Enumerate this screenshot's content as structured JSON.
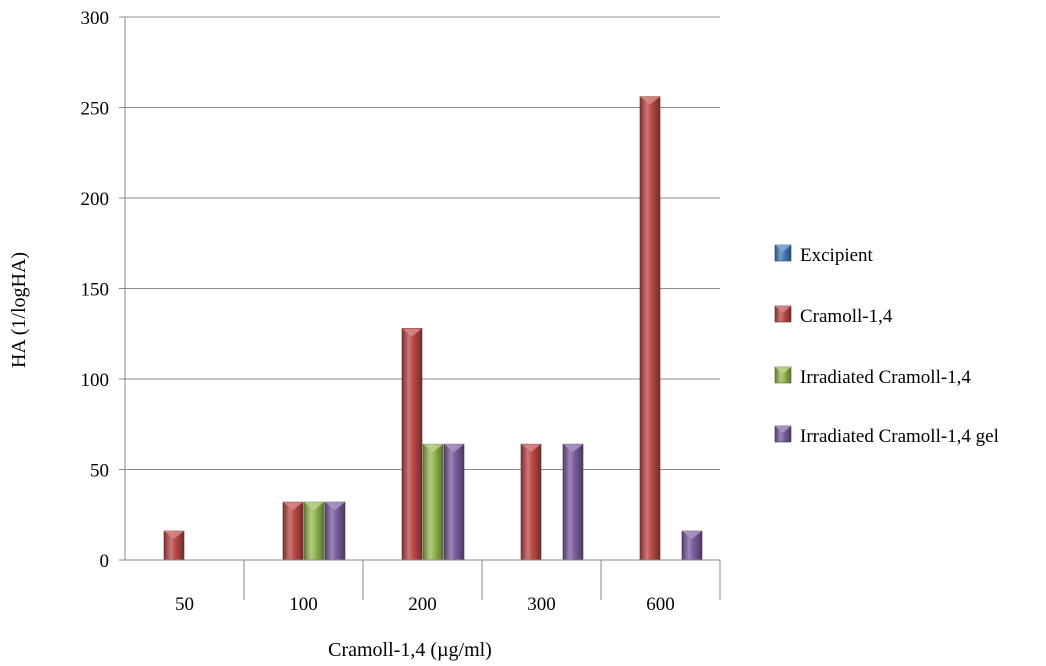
{
  "chart_data": {
    "type": "bar",
    "title": "",
    "xlabel": "Cramoll-1,4 (µg/ml)",
    "ylabel": "HA (1/logHA)",
    "ylim": [
      0,
      300
    ],
    "yticks": [
      0,
      50,
      100,
      150,
      200,
      250,
      300
    ],
    "grid": true,
    "legend_position": "right",
    "categories": [
      "50",
      "100",
      "200",
      "300",
      "600"
    ],
    "series": [
      {
        "name": "Excipient",
        "color": "#4a7ebb",
        "values": [
          0,
          0,
          0,
          0,
          0
        ]
      },
      {
        "name": "Cramoll-1,4",
        "color": "#be4b48",
        "values": [
          16,
          32,
          128,
          64,
          256
        ]
      },
      {
        "name": "Irradiated Cramoll-1,4",
        "color": "#98b954",
        "values": [
          0,
          32,
          64,
          0,
          0
        ]
      },
      {
        "name": "Irradiated Cramoll-1,4 gel",
        "color": "#7d60a0",
        "values": [
          0,
          32,
          64,
          64,
          16
        ]
      }
    ]
  }
}
